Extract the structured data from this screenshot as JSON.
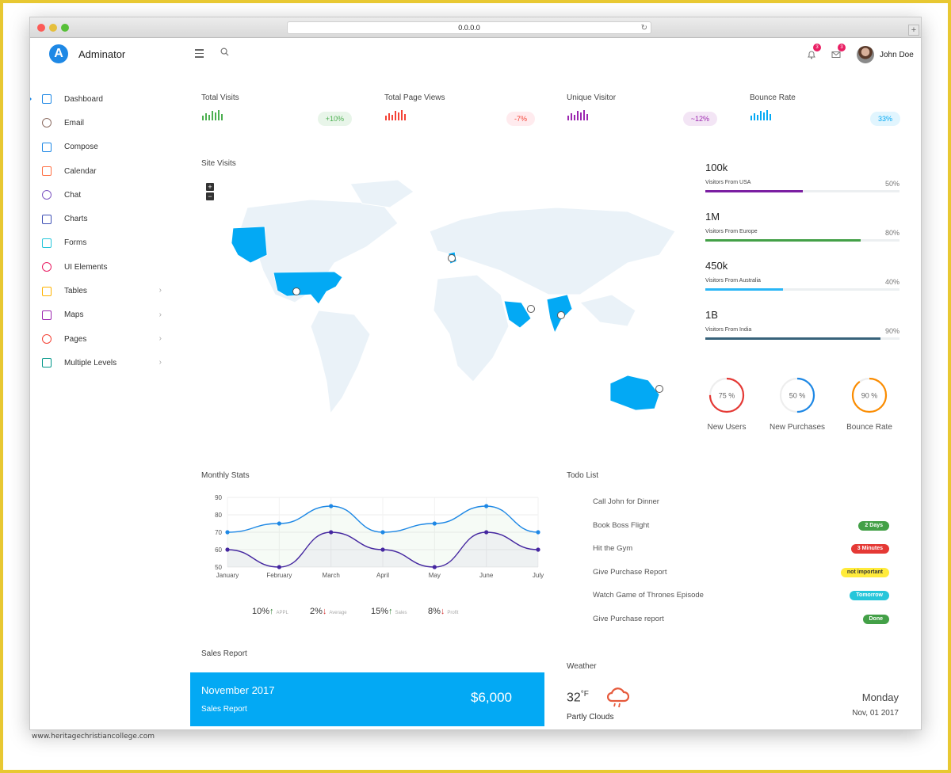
{
  "browser": {
    "url": "0.0.0.0",
    "new_tab": "+"
  },
  "header": {
    "brand_letter": "A",
    "brand": "Adminator",
    "notifications_count": "3",
    "messages_count": "3",
    "user_name": "John Doe"
  },
  "sidebar": {
    "items": [
      {
        "label": "Dashboard",
        "icon": "home-icon",
        "color": "#1e88e5",
        "chevron": ""
      },
      {
        "label": "Email",
        "icon": "email-icon",
        "color": "#8d6e63",
        "chevron": ""
      },
      {
        "label": "Compose",
        "icon": "compose-icon",
        "color": "#1e88e5",
        "chevron": ""
      },
      {
        "label": "Calendar",
        "icon": "calendar-icon",
        "color": "#ff7043",
        "chevron": ""
      },
      {
        "label": "Chat",
        "icon": "chat-icon",
        "color": "#7e57c2",
        "chevron": ""
      },
      {
        "label": "Charts",
        "icon": "charts-icon",
        "color": "#3f51b5",
        "chevron": ""
      },
      {
        "label": "Forms",
        "icon": "pencil-icon",
        "color": "#26c6da",
        "chevron": ""
      },
      {
        "label": "UI Elements",
        "icon": "palette-icon",
        "color": "#e91e63",
        "chevron": ""
      },
      {
        "label": "Tables",
        "icon": "tables-icon",
        "color": "#ffb300",
        "chevron": "›"
      },
      {
        "label": "Maps",
        "icon": "map-icon",
        "color": "#9c27b0",
        "chevron": "›"
      },
      {
        "label": "Pages",
        "icon": "pages-icon",
        "color": "#f44336",
        "chevron": "›"
      },
      {
        "label": "Multiple Levels",
        "icon": "layers-icon",
        "color": "#009688",
        "chevron": "›"
      }
    ]
  },
  "stats": [
    {
      "label": "Total Visits",
      "value": "+10%",
      "color": "#4caf50",
      "pill_bg": "#e8f5e9"
    },
    {
      "label": "Total Page Views",
      "value": "-7%",
      "color": "#f44336",
      "pill_bg": "#ffebee"
    },
    {
      "label": "Unique Visitor",
      "value": "~12%",
      "color": "#9c27b0",
      "pill_bg": "#f3e5f5"
    },
    {
      "label": "Bounce Rate",
      "value": "33%",
      "color": "#03a9f4",
      "pill_bg": "#e1f5fe"
    }
  ],
  "site_visits": {
    "title": "Site Visits",
    "zoom_in": "+",
    "zoom_out": "−",
    "visitors": [
      {
        "value": "100k",
        "label": "Visitors From USA",
        "percent": "50%",
        "fraction": 0.5,
        "color": "#7b1fa2"
      },
      {
        "value": "1M",
        "label": "Visitors From Europe",
        "percent": "80%",
        "fraction": 0.8,
        "color": "#43a047"
      },
      {
        "value": "450k",
        "label": "Visitors From Australia",
        "percent": "40%",
        "fraction": 0.4,
        "color": "#29b6f6"
      },
      {
        "value": "1B",
        "label": "Visitors From India",
        "percent": "90%",
        "fraction": 0.9,
        "color": "#37627a"
      }
    ],
    "gauges": [
      {
        "value": "75 %",
        "fraction": 0.75,
        "label": "New Users",
        "color": "#e53935"
      },
      {
        "value": "50 %",
        "fraction": 0.5,
        "label": "New Purchases",
        "color": "#1e88e5"
      },
      {
        "value": "90 %",
        "fraction": 0.9,
        "label": "Bounce Rate",
        "color": "#fb8c00"
      }
    ]
  },
  "monthly_stats": {
    "title": "Monthly Stats",
    "summary": [
      {
        "value": "10%",
        "arrow": "↑",
        "dir": "up",
        "label": "APPL"
      },
      {
        "value": "2%",
        "arrow": "↓",
        "dir": "down",
        "label": "Average"
      },
      {
        "value": "15%",
        "arrow": "↑",
        "dir": "up",
        "label": "Sales"
      },
      {
        "value": "8%",
        "arrow": "↓",
        "dir": "down",
        "label": "Profit"
      }
    ]
  },
  "chart_data": {
    "type": "line",
    "categories": [
      "January",
      "February",
      "March",
      "April",
      "May",
      "June",
      "July"
    ],
    "series": [
      {
        "values": [
          70,
          75,
          85,
          70,
          75,
          85,
          70
        ],
        "color": "#1e88e5"
      },
      {
        "values": [
          60,
          50,
          70,
          60,
          50,
          70,
          60
        ],
        "color": "#4527a0"
      }
    ],
    "yticks": [
      90,
      80,
      70,
      60,
      50
    ],
    "ylim": [
      50,
      90
    ],
    "grid": true
  },
  "todo": {
    "title": "Todo List",
    "items": [
      {
        "text": "Call John for Dinner",
        "tag": "",
        "color": ""
      },
      {
        "text": "Book Boss Flight",
        "tag": "2 Days",
        "color": "#43a047"
      },
      {
        "text": "Hit the Gym",
        "tag": "3 Minutes",
        "color": "#e53935"
      },
      {
        "text": "Give Purchase Report",
        "tag": "not important",
        "color": "#ffeb3b"
      },
      {
        "text": "Watch Game of Thrones Episode",
        "tag": "Tomorrow",
        "color": "#26c6da"
      },
      {
        "text": "Give Purchase report",
        "tag": "Done",
        "color": "#43a047"
      }
    ]
  },
  "sales": {
    "title": "Sales Report",
    "month": "November 2017",
    "subtitle": "Sales Report",
    "amount": "$6,000"
  },
  "weather": {
    "title": "Weather",
    "temp": "32",
    "unit": "°F",
    "condition": "Partly Clouds",
    "day": "Monday",
    "date": "Nov, 01 2017",
    "icon": "cloud-rain-icon"
  },
  "watermark": "www.heritagechristiancollege.com"
}
